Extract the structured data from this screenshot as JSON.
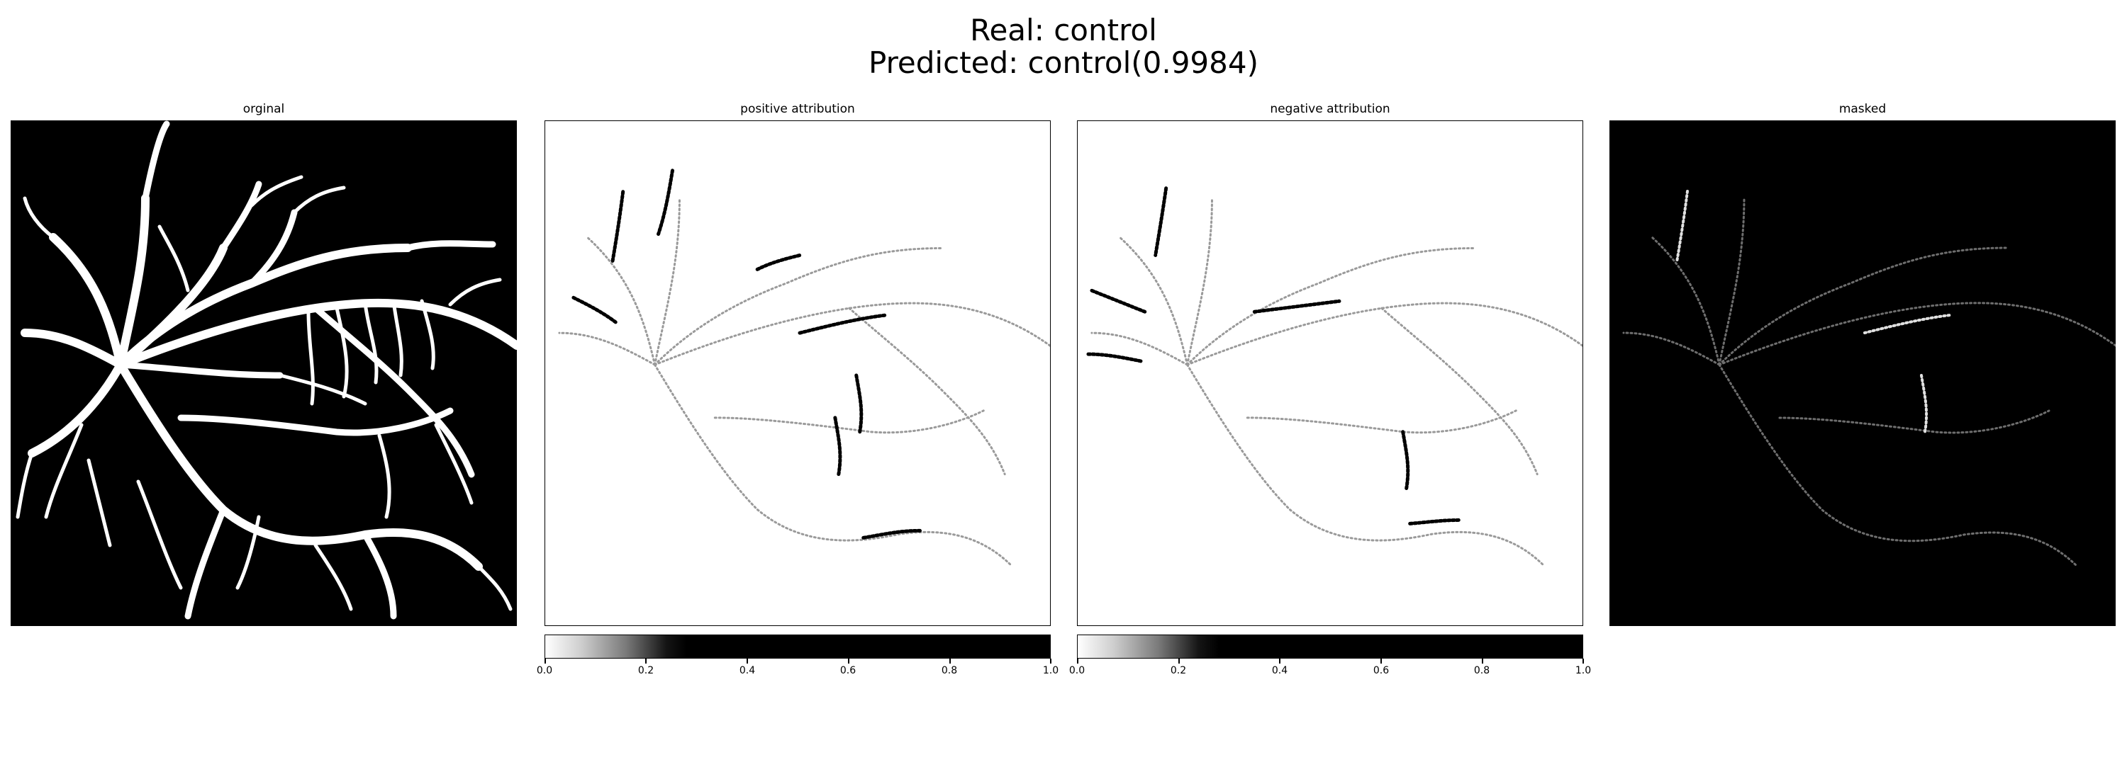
{
  "figure": {
    "title_line1": "Real: control",
    "title_line2": "Predicted: control(0.9984)"
  },
  "panels": [
    {
      "title": "orginal",
      "background": "#000000",
      "vessel_color": "#ffffff"
    },
    {
      "title": "positive attribution",
      "background": "#ffffff",
      "vessel_color": "#000000"
    },
    {
      "title": "negative attribution",
      "background": "#ffffff",
      "vessel_color": "#000000"
    },
    {
      "title": "masked",
      "background": "#000000",
      "vessel_color": "#bdbdbd"
    }
  ],
  "colorbar": {
    "colormap": "greys",
    "range": [
      0.0,
      1.0
    ],
    "ticks": [
      "0.0",
      "0.2",
      "0.4",
      "0.6",
      "0.8",
      "1.0"
    ]
  }
}
